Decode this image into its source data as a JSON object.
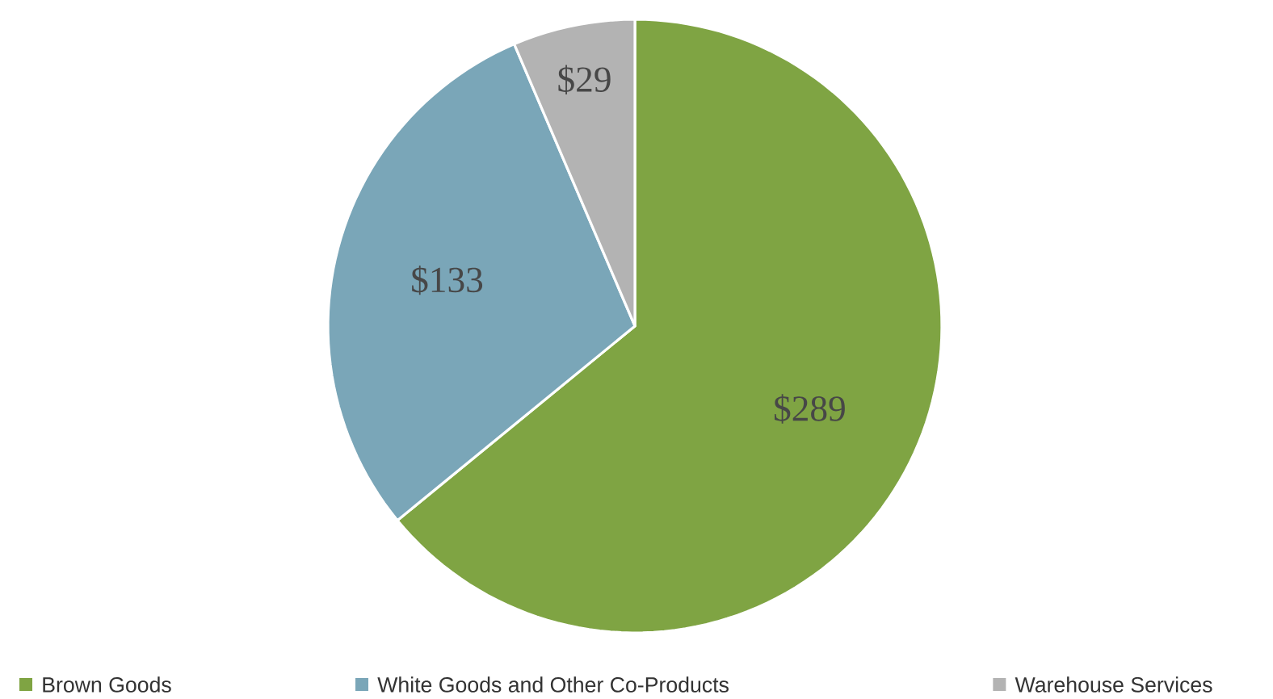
{
  "chart_data": {
    "type": "pie",
    "categories": [
      "Brown Goods",
      "White Goods and Other Co-Products",
      "Warehouse Services"
    ],
    "values": [
      289,
      133,
      29
    ],
    "value_labels": [
      "$289",
      "$133",
      "$29"
    ],
    "colors": [
      "#7fa443",
      "#7aa6b8",
      "#b3b3b3"
    ],
    "legend": "bottom"
  }
}
